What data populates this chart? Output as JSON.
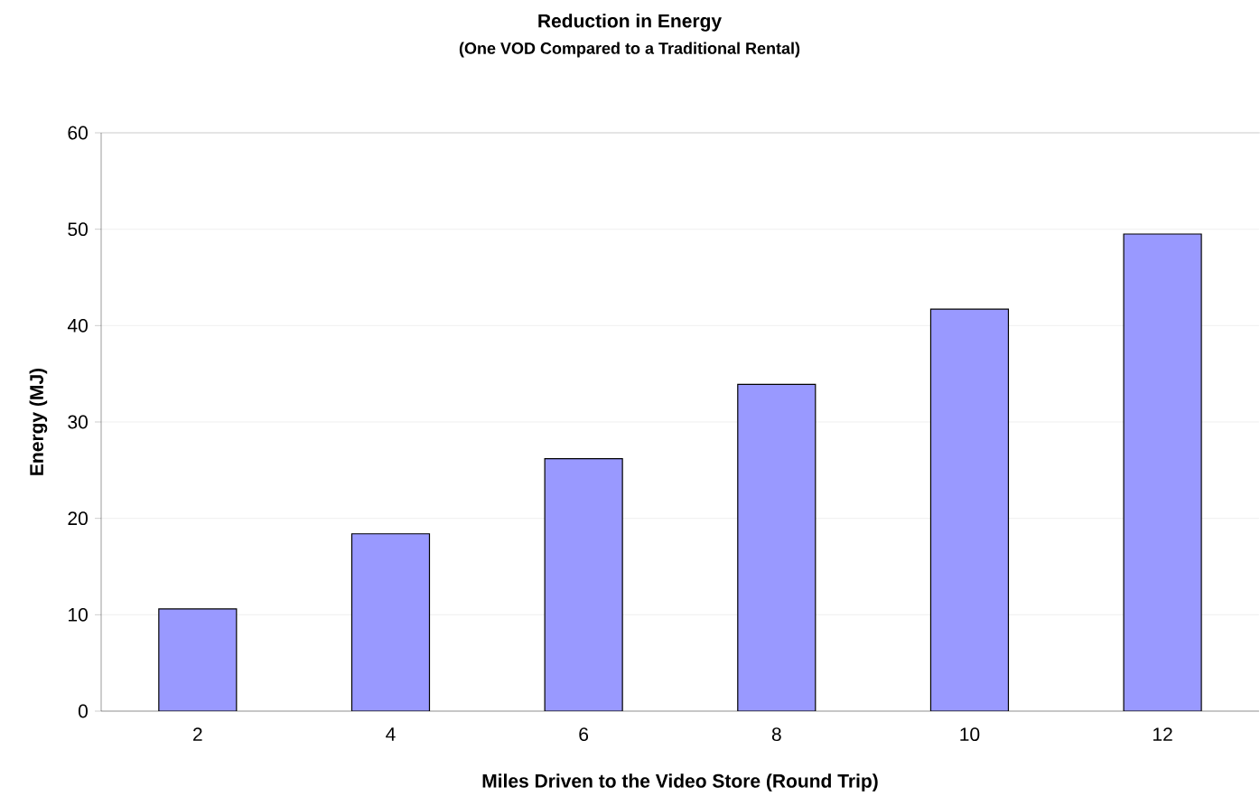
{
  "chart_data": {
    "type": "bar",
    "title": "Reduction in Energy",
    "subtitle": "(One VOD Compared to a Traditional Rental)",
    "xlabel": "Miles Driven to the Video Store (Round Trip)",
    "ylabel": "Energy (MJ)",
    "categories": [
      "2",
      "4",
      "6",
      "8",
      "10",
      "12"
    ],
    "values": [
      10.6,
      18.4,
      26.2,
      33.9,
      41.7,
      49.5
    ],
    "color": "#9999ff",
    "ylim": [
      0,
      60
    ],
    "yticks": [
      0,
      10,
      20,
      30,
      40,
      50,
      60
    ],
    "grid": "y"
  }
}
